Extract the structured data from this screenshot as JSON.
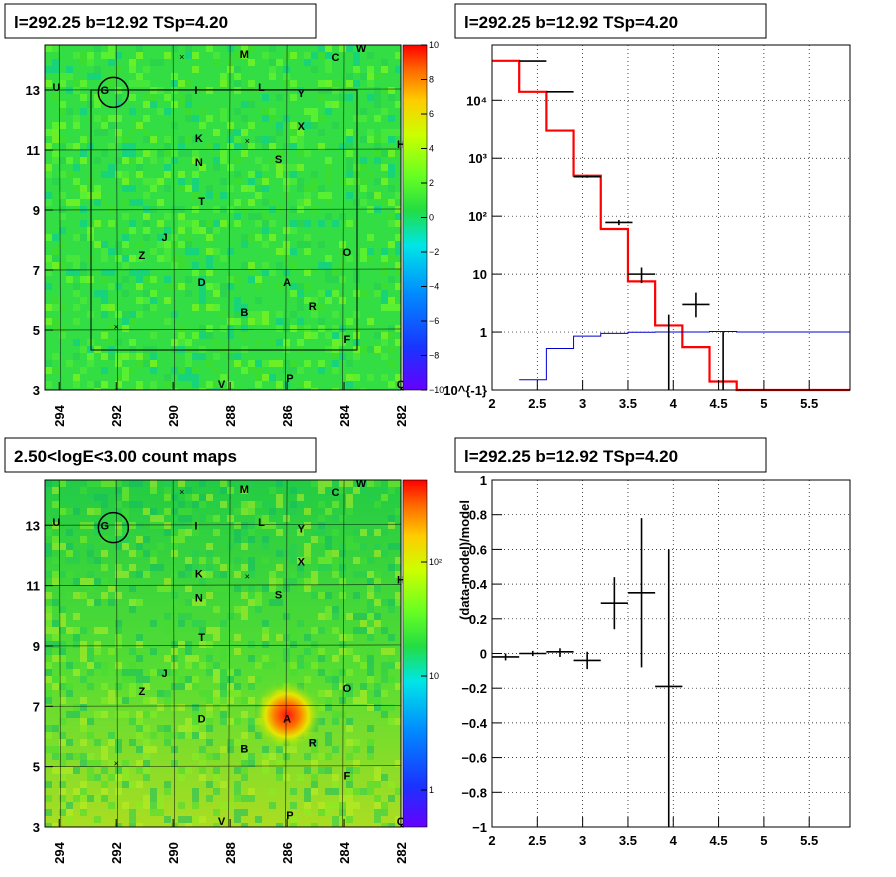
{
  "charts": [
    {
      "id": "map1",
      "title": "l=292.25 b=12.92 TSp=4.20",
      "type": "heatmap",
      "x_ticks": [
        "294",
        "292",
        "290",
        "288",
        "286",
        "284",
        "282"
      ],
      "y_ticks": [
        "13",
        "11",
        "9",
        "7",
        "5",
        "3"
      ],
      "colorbar_ticks": [
        "10",
        "8",
        "6",
        "4",
        "2",
        "0",
        "−2",
        "−4",
        "−6",
        "−8",
        "−10"
      ]
    },
    {
      "id": "spec",
      "title": "l=292.25 b=12.92 TSp=4.20",
      "type": "step-histogram",
      "x_ticks": [
        "2",
        "2.5",
        "3",
        "3.5",
        "4",
        "4.5",
        "5",
        "5.5"
      ],
      "y_ticks": [
        "10^{-1}",
        "1",
        "10",
        "10²",
        "10³",
        "10⁴"
      ]
    },
    {
      "id": "map2",
      "title": "2.50<logE<3.00 count maps",
      "type": "heatmap",
      "x_ticks": [
        "294",
        "292",
        "290",
        "288",
        "286",
        "284",
        "282"
      ],
      "y_ticks": [
        "13",
        "11",
        "9",
        "7",
        "5",
        "3"
      ],
      "colorbar_ticks": [
        "10²",
        "10",
        "1"
      ]
    },
    {
      "id": "resid",
      "title": "l=292.25 b=12.92 TSp=4.20",
      "type": "scatter",
      "ylabel": "(data-model)/model",
      "x_ticks": [
        "2",
        "2.5",
        "3",
        "3.5",
        "4",
        "4.5",
        "5",
        "5.5"
      ],
      "y_ticks": [
        "1",
        "0.8",
        "0.6",
        "0.4",
        "0.2",
        "0",
        "−0.2",
        "−0.4",
        "−0.6",
        "−0.8",
        "−1"
      ]
    }
  ],
  "chart_data": [
    {
      "type": "heatmap",
      "title": "l=292.25 b=12.92 TSp=4.20",
      "x_range": [
        294.5,
        282
      ],
      "y_range": [
        3,
        14.5
      ],
      "z_range": [
        -10,
        10
      ],
      "x_ticks": [
        294,
        292,
        290,
        288,
        286,
        284,
        282
      ],
      "y_ticks": [
        13,
        11,
        9,
        7,
        5,
        3
      ],
      "grid": true,
      "labels": [
        {
          "text": "M",
          "x": 287.5,
          "y": 14.2
        },
        {
          "text": "C",
          "x": 284.3,
          "y": 14.1
        },
        {
          "text": "W",
          "x": 283.4,
          "y": 14.4
        },
        {
          "text": "U",
          "x": 294.1,
          "y": 13.1
        },
        {
          "text": "G",
          "x": 292.4,
          "y": 13.0
        },
        {
          "text": "I",
          "x": 289.2,
          "y": 13.0
        },
        {
          "text": "L",
          "x": 286.9,
          "y": 13.1
        },
        {
          "text": "Y",
          "x": 285.5,
          "y": 12.9
        },
        {
          "text": "X",
          "x": 285.5,
          "y": 11.8
        },
        {
          "text": "K",
          "x": 289.1,
          "y": 11.4
        },
        {
          "text": "N",
          "x": 289.1,
          "y": 10.6
        },
        {
          "text": "S",
          "x": 286.3,
          "y": 10.7
        },
        {
          "text": "H",
          "x": 282.0,
          "y": 11.2
        },
        {
          "text": "T",
          "x": 289.0,
          "y": 9.3
        },
        {
          "text": "J",
          "x": 290.3,
          "y": 8.1
        },
        {
          "text": "Z",
          "x": 291.1,
          "y": 7.5
        },
        {
          "text": "O",
          "x": 283.9,
          "y": 7.6
        },
        {
          "text": "D",
          "x": 289.0,
          "y": 6.6
        },
        {
          "text": "A",
          "x": 286.0,
          "y": 6.6
        },
        {
          "text": "R",
          "x": 285.1,
          "y": 5.8
        },
        {
          "text": "B",
          "x": 287.5,
          "y": 5.6
        },
        {
          "text": "F",
          "x": 283.9,
          "y": 4.7
        },
        {
          "text": "V",
          "x": 288.3,
          "y": 3.2
        },
        {
          "text": "P",
          "x": 285.9,
          "y": 3.4
        },
        {
          "text": "Q",
          "x": 282.0,
          "y": 3.2
        }
      ],
      "crosses": [
        {
          "x": 289.7,
          "y": 14.1
        },
        {
          "x": 287.4,
          "y": 11.3
        },
        {
          "x": 292.0,
          "y": 5.1
        }
      ],
      "circle": {
        "x": 292.1,
        "y": 12.92
      }
    },
    {
      "type": "line",
      "title": "l=292.25 b=12.92 TSp=4.20",
      "ylog": true,
      "xlim": [
        2,
        5.95
      ],
      "ylim": [
        0.1,
        90000
      ],
      "x_ticks": [
        2,
        2.5,
        3,
        3.5,
        4,
        4.5,
        5,
        5.5
      ],
      "grid": true,
      "series": [
        {
          "color": "#ff0000",
          "edges": [
            2,
            2.3,
            2.6,
            2.9,
            3.2,
            3.5,
            3.8,
            4.1,
            4.4,
            4.7,
            5.95
          ],
          "values": [
            48000,
            14000,
            3000,
            500,
            60,
            7.5,
            1.3,
            0.55,
            0.14,
            0.1
          ]
        },
        {
          "color": "#0000cc",
          "edges": [
            2.3,
            2.6,
            2.9,
            3.2,
            3.5,
            3.8,
            4.1,
            4.4,
            4.7,
            5.95
          ],
          "values": [
            0.15,
            0.52,
            0.85,
            0.95,
            0.99,
            1.0,
            1.0,
            1.02,
            1.0
          ]
        }
      ],
      "data_points": [
        {
          "x": 2.45,
          "y": 47500,
          "xerr": 0.15,
          "ylo": 47000,
          "yhi": 48000
        },
        {
          "x": 2.75,
          "y": 14000,
          "xerr": 0.15,
          "ylo": 13800,
          "yhi": 14200
        },
        {
          "x": 3.05,
          "y": 480,
          "xerr": 0.15,
          "ylo": 460,
          "yhi": 500
        },
        {
          "x": 3.4,
          "y": 78,
          "xerr": 0.15,
          "ylo": 70,
          "yhi": 86
        },
        {
          "x": 3.65,
          "y": 10,
          "xerr": 0.15,
          "ylo": 7,
          "yhi": 13
        },
        {
          "x": 3.95,
          "y": 0.6,
          "xerr": 0.0,
          "ylo": 0.1,
          "yhi": 2.0
        },
        {
          "x": 4.25,
          "y": 3,
          "xerr": 0.15,
          "ylo": 1.8,
          "yhi": 4.8
        },
        {
          "x": 4.55,
          "y": 0.3,
          "xerr": 0.0,
          "ylo": 0.1,
          "yhi": 1.0
        }
      ]
    },
    {
      "type": "heatmap",
      "title": "2.50<logE<3.00 count maps",
      "x_range": [
        294.5,
        282
      ],
      "y_range": [
        3,
        14.5
      ],
      "zlog": true,
      "z_ticks": [
        100,
        10,
        1
      ],
      "x_ticks": [
        294,
        292,
        290,
        288,
        286,
        284,
        282
      ],
      "y_ticks": [
        13,
        11,
        9,
        7,
        5,
        3
      ],
      "grid": true,
      "hotspot": {
        "x": 286.0,
        "y": 6.7
      }
    },
    {
      "type": "scatter",
      "title": "l=292.25 b=12.92 TSp=4.20",
      "ylabel": "(data-model)/model",
      "xlim": [
        2,
        5.95
      ],
      "ylim": [
        -1,
        1
      ],
      "x_ticks": [
        2,
        2.5,
        3,
        3.5,
        4,
        4.5,
        5,
        5.5
      ],
      "y_ticks": [
        1,
        0.8,
        0.6,
        0.4,
        0.2,
        0,
        -0.2,
        -0.4,
        -0.6,
        -0.8,
        -1
      ],
      "grid": true,
      "points": [
        {
          "x": 2.15,
          "y": -0.02,
          "xerr": 0.15,
          "ylo": -0.04,
          "yhi": 0.0
        },
        {
          "x": 2.45,
          "y": 0.0,
          "xerr": 0.15,
          "ylo": -0.015,
          "yhi": 0.015
        },
        {
          "x": 2.75,
          "y": 0.01,
          "xerr": 0.15,
          "ylo": -0.02,
          "yhi": 0.03
        },
        {
          "x": 3.05,
          "y": -0.04,
          "xerr": 0.15,
          "ylo": -0.09,
          "yhi": 0.01
        },
        {
          "x": 3.35,
          "y": 0.29,
          "xerr": 0.15,
          "ylo": 0.14,
          "yhi": 0.44
        },
        {
          "x": 3.65,
          "y": 0.35,
          "xerr": 0.15,
          "ylo": -0.08,
          "yhi": 0.78
        },
        {
          "x": 3.95,
          "y": -0.19,
          "xerr": 0.15,
          "ylo": -1.0,
          "yhi": 0.6
        }
      ]
    }
  ]
}
